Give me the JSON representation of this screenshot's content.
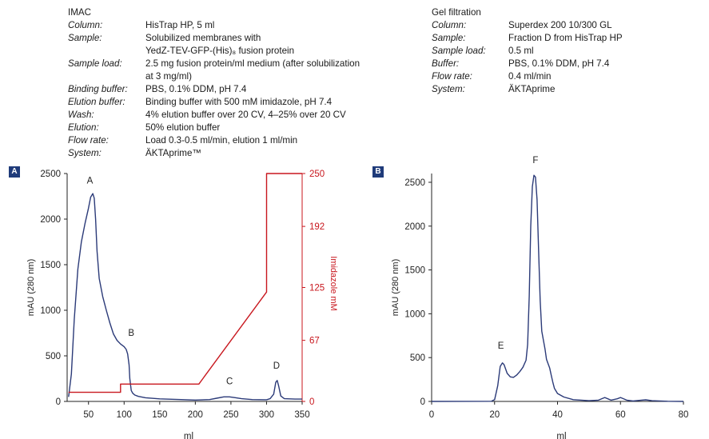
{
  "imac": {
    "heading": "IMAC",
    "rows": [
      {
        "key": "Column:",
        "value": "HisTrap HP, 5 ml"
      },
      {
        "key": "Sample:",
        "value": "Solubilized membranes with"
      },
      {
        "key": "",
        "value": "YedZ-TEV-GFP-(His)₈ fusion protein"
      },
      {
        "key": "Sample load:",
        "value": "2.5 mg fusion protein/ml medium (after solubilization"
      },
      {
        "key": "",
        "value": "at 3 mg/ml)"
      },
      {
        "key": "Binding buffer:",
        "value": "PBS, 0.1% DDM, pH 7.4"
      },
      {
        "key": "Elution buffer:",
        "value": "Binding buffer with 500 mM imidazole, pH 7.4"
      },
      {
        "key": "Wash:",
        "value": "4% elution buffer over 20 CV, 4–25% over 20 CV"
      },
      {
        "key": "Elution:",
        "value": "50% elution buffer"
      },
      {
        "key": "Flow rate:",
        "value": "Load 0.3-0.5 ml/min, elution 1 ml/min"
      },
      {
        "key": "System:",
        "value": "ÄKTAprime™"
      }
    ]
  },
  "gel_filtration": {
    "heading": "Gel filtration",
    "rows": [
      {
        "key": "Column:",
        "value": "Superdex 200 10/300 GL"
      },
      {
        "key": "Sample:",
        "value": "Fraction D from HisTrap HP"
      },
      {
        "key": "Sample load:",
        "value": "0.5 ml"
      },
      {
        "key": "Buffer:",
        "value": "PBS, 0.1% DDM, pH 7.4"
      },
      {
        "key": "Flow rate:",
        "value": "0.4 ml/min"
      },
      {
        "key": "System:",
        "value": "ÄKTAprime"
      }
    ]
  },
  "colors": {
    "trace": "#2b3a78",
    "imidazole": "#c8171e",
    "axis": "#222222",
    "badge": "#1f3b7a"
  },
  "chart_data": [
    {
      "panel": "A",
      "type": "line",
      "xlabel": "ml",
      "ylabel": "mAU (280 nm)",
      "y2label": "Imidazole mM",
      "xlim": [
        20,
        350
      ],
      "ylim": [
        0,
        2500
      ],
      "y2lim": [
        0,
        250
      ],
      "xticks": [
        50,
        100,
        150,
        200,
        250,
        300,
        350
      ],
      "yticks": [
        0,
        500,
        1000,
        1500,
        2000,
        2500
      ],
      "y2ticks": [
        0,
        67,
        125,
        192,
        250
      ],
      "series": [
        {
          "axis": "left",
          "color_key": "trace",
          "x": [
            22,
            26,
            30,
            35,
            40,
            45,
            50,
            53,
            56,
            58,
            60,
            62,
            65,
            70,
            75,
            80,
            85,
            90,
            95,
            100,
            103,
            105,
            107,
            108,
            110,
            112,
            115,
            120,
            130,
            150,
            180,
            200,
            220,
            230,
            240,
            248,
            255,
            265,
            280,
            300,
            305,
            310,
            313,
            315,
            317,
            320,
            325,
            340,
            350
          ],
          "y": [
            50,
            300,
            900,
            1450,
            1750,
            1950,
            2120,
            2240,
            2280,
            2230,
            2000,
            1650,
            1350,
            1150,
            1000,
            860,
            740,
            670,
            630,
            600,
            570,
            520,
            400,
            250,
            120,
            90,
            70,
            55,
            40,
            28,
            20,
            15,
            20,
            35,
            50,
            50,
            42,
            30,
            20,
            18,
            30,
            80,
            210,
            230,
            170,
            60,
            30,
            25,
            25
          ]
        },
        {
          "axis": "right",
          "color_key": "imidazole",
          "x": [
            22,
            95,
            95,
            205,
            300,
            300,
            350
          ],
          "y": [
            10,
            10,
            19,
            19,
            120,
            250,
            250
          ]
        }
      ],
      "annotations": [
        {
          "text": "A",
          "x": 52,
          "y": 2390
        },
        {
          "text": "B",
          "x": 110,
          "y": 720
        },
        {
          "text": "C",
          "x": 248,
          "y": 190
        },
        {
          "text": "D",
          "x": 314,
          "y": 360
        }
      ]
    },
    {
      "panel": "B",
      "type": "line",
      "xlabel": "ml",
      "ylabel": "mAU (280 nm)",
      "xlim": [
        0,
        80
      ],
      "ylim": [
        0,
        2600
      ],
      "xticks": [
        0,
        20,
        40,
        60,
        80
      ],
      "yticks": [
        0,
        500,
        1000,
        1500,
        2000,
        2500
      ],
      "series": [
        {
          "axis": "left",
          "color_key": "trace",
          "x": [
            0,
            19,
            20,
            21,
            21.8,
            22.5,
            23,
            24,
            25,
            26,
            27,
            28,
            29,
            30,
            30.5,
            31,
            31.5,
            32,
            32.5,
            33,
            33.5,
            34,
            34.5,
            35,
            35.5,
            36,
            36.5,
            37,
            37.5,
            38,
            38.5,
            39,
            40,
            42,
            45,
            50,
            53,
            55,
            57,
            59,
            60,
            62,
            64,
            66,
            68,
            70,
            75,
            80
          ],
          "y": [
            0,
            2,
            20,
            180,
            400,
            440,
            420,
            320,
            280,
            275,
            300,
            340,
            390,
            470,
            650,
            1200,
            2000,
            2450,
            2580,
            2560,
            2300,
            1700,
            1150,
            800,
            700,
            600,
            480,
            430,
            380,
            300,
            220,
            150,
            90,
            50,
            20,
            8,
            15,
            45,
            15,
            30,
            45,
            15,
            5,
            12,
            18,
            8,
            2,
            0
          ]
        }
      ],
      "annotations": [
        {
          "text": "E",
          "x": 22,
          "y": 600
        },
        {
          "text": "F",
          "x": 33,
          "y": 2720
        }
      ]
    }
  ]
}
